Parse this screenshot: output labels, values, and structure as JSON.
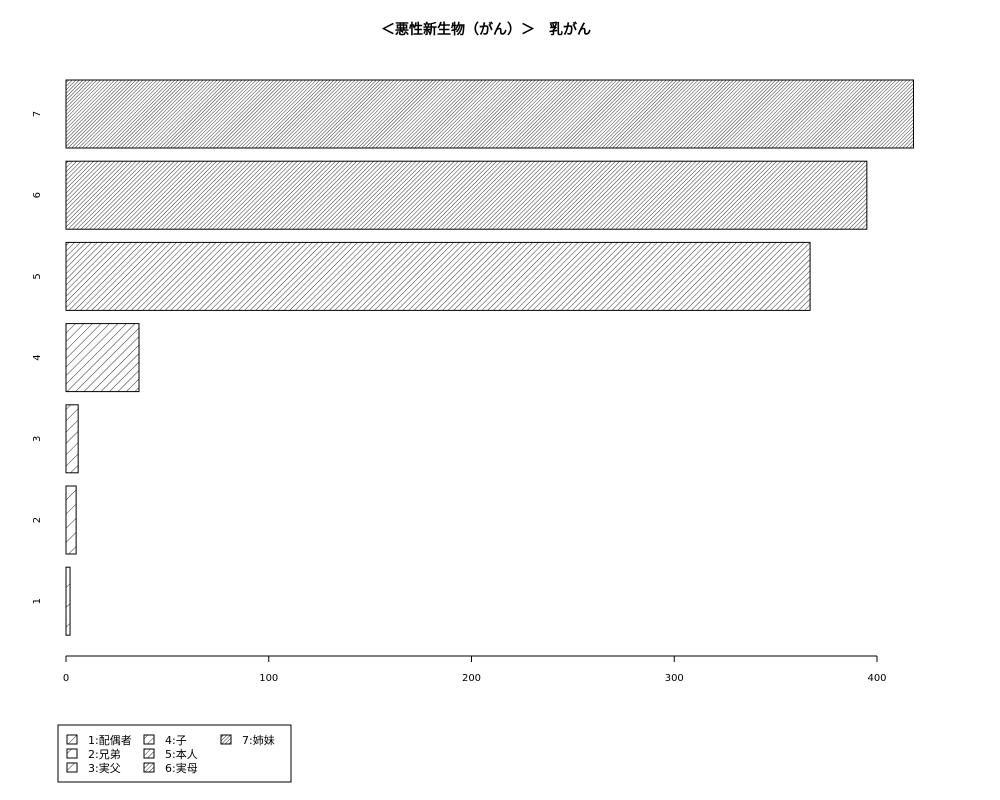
{
  "chart_data": {
    "type": "bar",
    "orientation": "horizontal",
    "title": "＜悪性新生物（がん）＞　乳がん",
    "xlabel": "",
    "ylabel": "",
    "categories": [
      "1",
      "2",
      "3",
      "4",
      "5",
      "6",
      "7"
    ],
    "values": [
      2,
      5,
      6,
      36,
      367,
      395,
      418
    ],
    "xlim": [
      0,
      400
    ],
    "xticks": [
      "0",
      "100",
      "200",
      "300",
      "400"
    ],
    "grid": false,
    "legend_position": "bottom-left",
    "legend": [
      "1:配偶者",
      "2:兄弟",
      "3:実父",
      "4:子",
      "5:本人",
      "6:実母",
      "7:姉妹"
    ]
  }
}
